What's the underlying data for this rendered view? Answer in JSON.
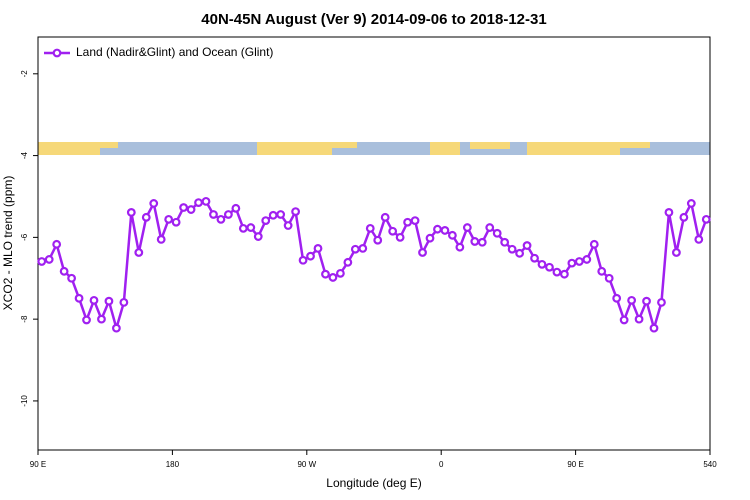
{
  "chart_data": {
    "type": "line",
    "title": "40N-45N August (Ver 9)   2014-09-06 to 2018-12-31",
    "x_label": "Longitude (deg E)",
    "y_label": "XCO2 - MLO trend (ppm)",
    "xlim": [
      90,
      540
    ],
    "ylim": [
      -11.2,
      -1.1
    ],
    "xticks": [
      {
        "value": 90,
        "label": "90 E"
      },
      180,
      {
        "value": 270,
        "label": "90 W"
      },
      0,
      {
        "value": 450,
        "label": "90 E"
      },
      540
    ],
    "yticks": [
      -2,
      -4,
      -6,
      -8,
      -10
    ],
    "legend": "top-left",
    "x": [
      92.5,
      97.5,
      102.5,
      107.5,
      112.5,
      117.5,
      122.5,
      127.5,
      132.5,
      137.5,
      142.5,
      147.5,
      152.5,
      157.5,
      162.5,
      167.5,
      172.5,
      177.5,
      182.5,
      187.5,
      192.5,
      197.5,
      202.5,
      207.5,
      212.5,
      217.5,
      222.5,
      227.5,
      232.5,
      237.5,
      242.5,
      247.5,
      252.5,
      257.5,
      262.5,
      267.5,
      272.5,
      277.5,
      282.5,
      287.5,
      292.5,
      297.5,
      302.5,
      307.5,
      312.5,
      317.5,
      322.5,
      327.5,
      332.5,
      337.5,
      342.5,
      347.5,
      352.5,
      357.5,
      362.5,
      367.5,
      372.5,
      377.5,
      382.5,
      387.5,
      392.5,
      397.5,
      402.5,
      407.5,
      412.5,
      417.5,
      422.5,
      427.5,
      432.5,
      437.5,
      442.5,
      447.5,
      452.5,
      457.5,
      462.5,
      467.5,
      472.5,
      477.5,
      482.5,
      487.5,
      492.5,
      497.5,
      502.5,
      507.5,
      512.5,
      517.5,
      522.5,
      527.5,
      532.5,
      537.5
    ],
    "series": [
      {
        "name": "Land (Nadir&Glint) and Ocean (Glint)",
        "color": "#a020f0",
        "values": [
          -6.59,
          -6.54,
          -6.17,
          -6.83,
          -7.0,
          -7.49,
          -8.02,
          -7.54,
          -8.0,
          -7.56,
          -8.22,
          -7.59,
          -5.39,
          -6.37,
          -5.51,
          -5.17,
          -6.05,
          -5.56,
          -5.63,
          -5.27,
          -5.32,
          -5.15,
          -5.12,
          -5.44,
          -5.56,
          -5.44,
          -5.29,
          -5.78,
          -5.76,
          -5.98,
          -5.59,
          -5.46,
          -5.44,
          -5.71,
          -5.37,
          -6.56,
          -6.46,
          -6.27,
          -6.9,
          -6.98,
          -6.88,
          -6.61,
          -6.29,
          -6.27,
          -5.78,
          -6.07,
          -5.51,
          -5.85,
          -6.0,
          -5.63,
          -5.59,
          -6.37,
          -6.02,
          -5.8,
          -5.83,
          -5.95,
          -6.24,
          -5.76,
          -6.1,
          -6.12,
          -5.76,
          -5.9,
          -6.12,
          -6.29,
          -6.39,
          -6.2,
          -6.51,
          -6.66,
          -6.73,
          -6.85,
          -6.9,
          -6.63,
          -6.59,
          -6.54,
          -6.17,
          -6.83,
          -7.0,
          -7.49,
          -8.02,
          -7.54,
          -8.0,
          -7.56,
          -8.22,
          -7.59,
          -5.39,
          -6.37,
          -5.51,
          -5.17,
          -6.05,
          -5.56
        ]
      }
    ]
  }
}
